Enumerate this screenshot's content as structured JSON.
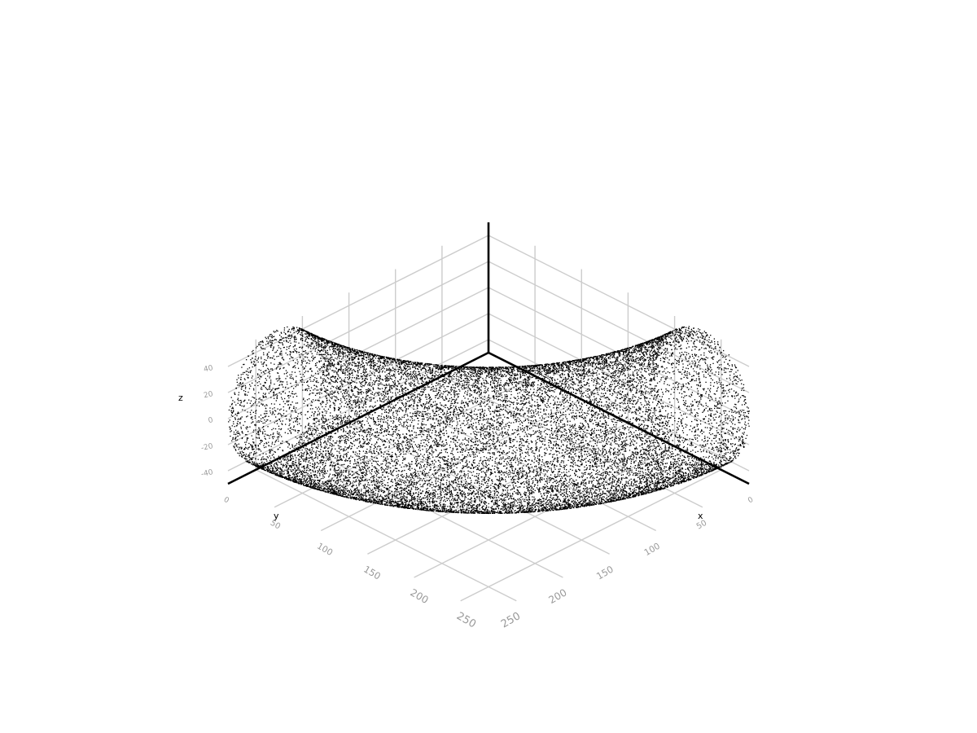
{
  "chart_data": {
    "type": "scatter",
    "projection": "3d",
    "title": "",
    "xlabel": "x",
    "ylabel": "y",
    "zlabel": "z",
    "xlim": [
      0,
      280
    ],
    "ylim": [
      0,
      280
    ],
    "zlim": [
      -50,
      50
    ],
    "x_ticks": [
      0,
      50,
      100,
      150,
      200,
      250
    ],
    "y_ticks": [
      0,
      50,
      100,
      150,
      200,
      250
    ],
    "z_ticks": [
      -40,
      -20,
      0,
      20,
      40
    ],
    "grid": true,
    "marker_color": "#000000",
    "grid_color": "#cccccc",
    "tick_label_color": "#999999",
    "axis_line_color": "#000000",
    "series": [
      {
        "shape": "quarter-torus",
        "center": [
          0,
          0,
          0
        ],
        "major_radius": 230,
        "minor_radius": 50,
        "theta_range_deg": [
          0,
          90
        ],
        "approx_point_count": 20000
      }
    ]
  }
}
